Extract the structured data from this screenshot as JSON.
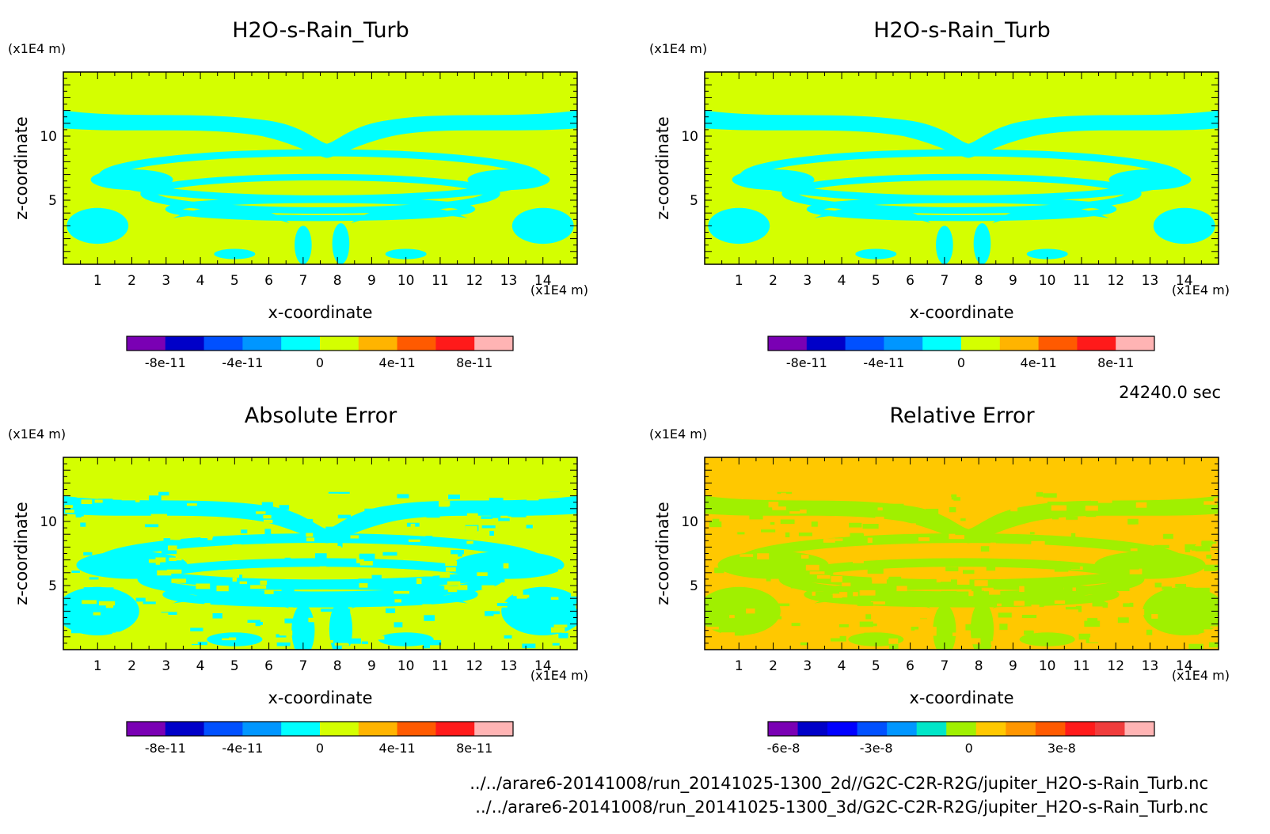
{
  "figure": {
    "time_label": "24240.0 sec",
    "file_lines": [
      "../../arare6-20141008/run_20141025-1300_2d//G2C-C2R-R2G/jupiter_H2O-s-Rain_Turb.nc",
      "../../arare6-20141008/run_20141025-1300_3d/G2C-C2R-R2G/jupiter_H2O-s-Rain_Turb.nc"
    ]
  },
  "chart_data": [
    {
      "type": "heatmap",
      "title": "H2O-s-Rain_Turb",
      "xlabel": "x-coordinate",
      "ylabel": "z-coordinate",
      "x_unit": "(x1E4 m)",
      "y_unit": "(x1E4 m)",
      "xlim": [
        0,
        15
      ],
      "ylim": [
        0,
        15
      ],
      "xticks": [
        "1",
        "2",
        "3",
        "4",
        "5",
        "6",
        "7",
        "8",
        "9",
        "10",
        "11",
        "12",
        "13",
        "14"
      ],
      "yticks": [
        "5",
        "10"
      ],
      "pattern": "field",
      "colors": {
        "background": "#d4ff00",
        "features": "#00ffff",
        "top_band": "#d4ff00"
      },
      "colorbar": {
        "colors": [
          "#7a00b4",
          "#0000c8",
          "#0050ff",
          "#0096ff",
          "#00ffff",
          "#d4ff00",
          "#ffb400",
          "#ff5a00",
          "#ff1a1a",
          "#ffb4b4"
        ],
        "tick_labels": [
          "-8e-11",
          "-4e-11",
          "0",
          "4e-11",
          "8e-11"
        ],
        "tick_values": [
          -8e-11,
          -4e-11,
          0,
          4e-11,
          8e-11
        ],
        "range": [
          -1e-10,
          1e-10
        ]
      }
    },
    {
      "type": "heatmap",
      "title": "H2O-s-Rain_Turb",
      "xlabel": "x-coordinate",
      "ylabel": "z-coordinate",
      "x_unit": "(x1E4 m)",
      "y_unit": "(x1E4 m)",
      "xlim": [
        0,
        15
      ],
      "ylim": [
        0,
        15
      ],
      "xticks": [
        "1",
        "2",
        "3",
        "4",
        "5",
        "6",
        "7",
        "8",
        "9",
        "10",
        "11",
        "12",
        "13",
        "14"
      ],
      "yticks": [
        "5",
        "10"
      ],
      "pattern": "field",
      "colors": {
        "background": "#d4ff00",
        "features": "#00ffff",
        "top_band": "#d4ff00"
      },
      "colorbar": {
        "colors": [
          "#7a00b4",
          "#0000c8",
          "#0050ff",
          "#0096ff",
          "#00ffff",
          "#d4ff00",
          "#ffb400",
          "#ff5a00",
          "#ff1a1a",
          "#ffb4b4"
        ],
        "tick_labels": [
          "-8e-11",
          "-4e-11",
          "0",
          "4e-11",
          "8e-11"
        ],
        "tick_values": [
          -8e-11,
          -4e-11,
          0,
          4e-11,
          8e-11
        ],
        "range": [
          -1e-10,
          1e-10
        ]
      }
    },
    {
      "type": "heatmap",
      "title": "Absolute Error",
      "xlabel": "x-coordinate",
      "ylabel": "z-coordinate",
      "x_unit": "(x1E4 m)",
      "y_unit": "(x1E4 m)",
      "xlim": [
        0,
        15
      ],
      "ylim": [
        0,
        15
      ],
      "xticks": [
        "1",
        "2",
        "3",
        "4",
        "5",
        "6",
        "7",
        "8",
        "9",
        "10",
        "11",
        "12",
        "13",
        "14"
      ],
      "yticks": [
        "5",
        "10"
      ],
      "pattern": "error",
      "colors": {
        "background": "#d4ff00",
        "features": "#00ffff",
        "top_band": "#d4ff00"
      },
      "colorbar": {
        "colors": [
          "#7a00b4",
          "#0000c8",
          "#0050ff",
          "#0096ff",
          "#00ffff",
          "#d4ff00",
          "#ffb400",
          "#ff5a00",
          "#ff1a1a",
          "#ffb4b4"
        ],
        "tick_labels": [
          "-8e-11",
          "-4e-11",
          "0",
          "4e-11",
          "8e-11"
        ],
        "tick_values": [
          -8e-11,
          -4e-11,
          0,
          4e-11,
          8e-11
        ],
        "range": [
          -1e-10,
          1e-10
        ]
      }
    },
    {
      "type": "heatmap",
      "title": "Relative Error",
      "xlabel": "x-coordinate",
      "ylabel": "z-coordinate",
      "x_unit": "(x1E4 m)",
      "y_unit": "(x1E4 m)",
      "xlim": [
        0,
        15
      ],
      "ylim": [
        0,
        15
      ],
      "xticks": [
        "1",
        "2",
        "3",
        "4",
        "5",
        "6",
        "7",
        "8",
        "9",
        "10",
        "11",
        "12",
        "13",
        "14"
      ],
      "yticks": [
        "5",
        "10"
      ],
      "pattern": "relerror",
      "colors": {
        "background": "#ffc800",
        "features": "#a0f000",
        "top_band": "#ffc800"
      },
      "colorbar": {
        "colors": [
          "#7a00b4",
          "#0000c8",
          "#0000ff",
          "#0050ff",
          "#0096ff",
          "#00e6c8",
          "#a0f000",
          "#ffc800",
          "#ff9600",
          "#ff5a00",
          "#ff1a1a",
          "#f03c3c",
          "#ffb4b4"
        ],
        "tick_labels": [
          "-6e-8",
          "-3e-8",
          "0",
          "3e-8"
        ],
        "tick_values": [
          -6e-08,
          -3e-08,
          0,
          3e-08
        ],
        "range": [
          -6.5e-08,
          6e-08
        ]
      }
    }
  ]
}
